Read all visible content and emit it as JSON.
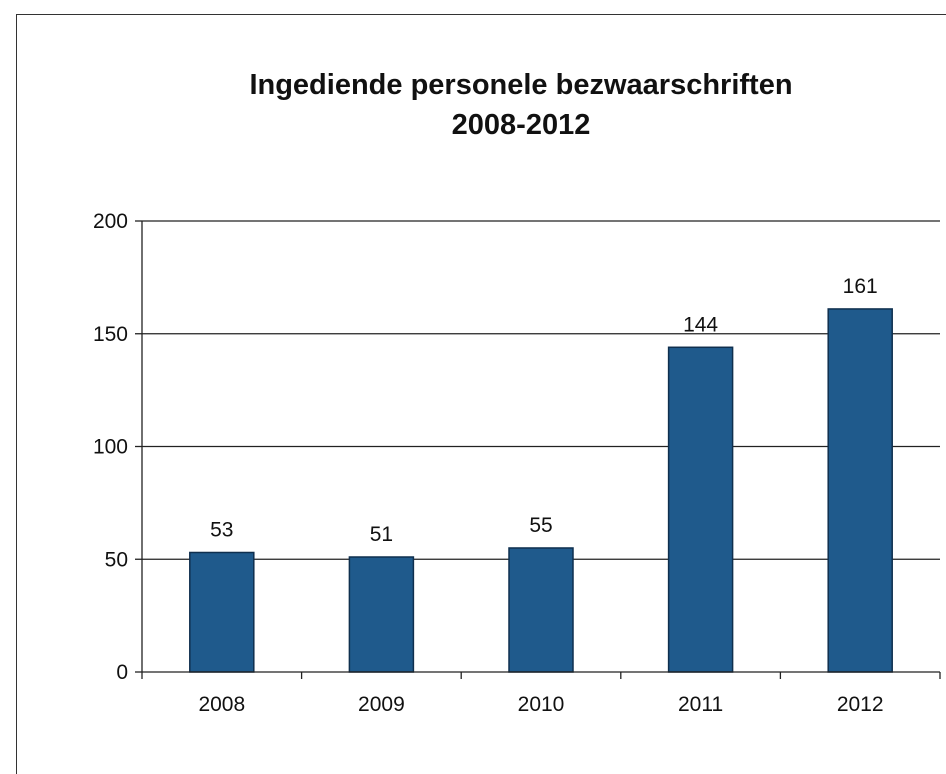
{
  "chart_data": {
    "type": "bar",
    "title": "Ingediende personele bezwaarschriften",
    "subtitle": "2008-2012",
    "xlabel": "",
    "ylabel": "",
    "categories": [
      "2008",
      "2009",
      "2010",
      "2011",
      "2012"
    ],
    "values": [
      53,
      51,
      55,
      144,
      161
    ],
    "ylim": [
      0,
      200
    ],
    "yticks": [
      0,
      50,
      100,
      150,
      200
    ],
    "grid": true,
    "legend": "none",
    "bar_color": "#1f5a8c",
    "bar_edge_color": "#0f2f4e"
  }
}
